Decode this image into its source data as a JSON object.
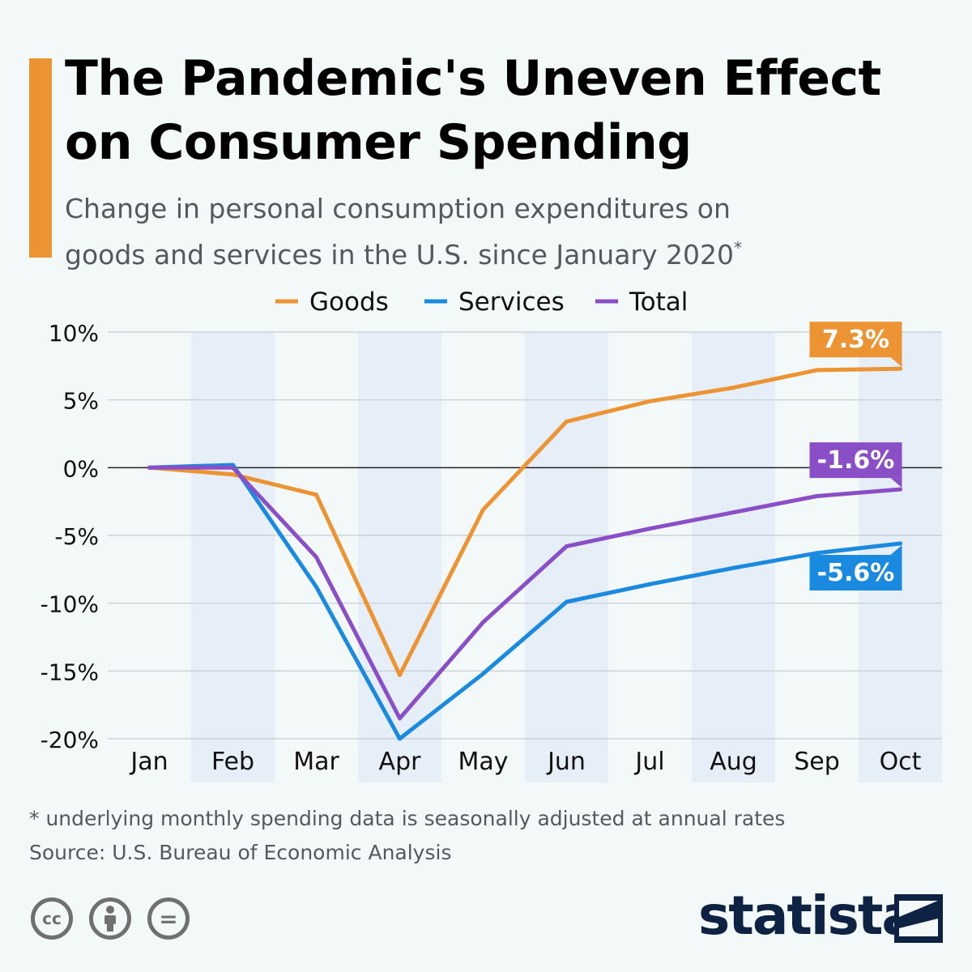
{
  "header": {
    "title_lines": [
      "The Pandemic's Uneven Effect",
      "on Consumer Spending"
    ],
    "subtitle_lines": [
      "Change in personal consumption expenditures on",
      "goods and services in the U.S. since January 2020"
    ],
    "subtitle_mark": "*"
  },
  "chart_data": {
    "type": "line",
    "categories": [
      "Jan",
      "Feb",
      "Mar",
      "Apr",
      "May",
      "Jun",
      "Jul",
      "Aug",
      "Sep",
      "Oct"
    ],
    "ylim": [
      -20,
      10
    ],
    "yticks": [
      10,
      5,
      0,
      -5,
      -10,
      -15,
      -20
    ],
    "ytick_labels": [
      "10%",
      "5%",
      "0%",
      "-5%",
      "-10%",
      "-15%",
      "-20%"
    ],
    "grid": true,
    "legend_position": "top-center",
    "series": [
      {
        "name": "Goods",
        "color": "#ec9433",
        "values": [
          0,
          -0.5,
          -2.0,
          -15.3,
          -3.1,
          3.4,
          4.9,
          5.9,
          7.2,
          7.3
        ],
        "end_label": "7.3%"
      },
      {
        "name": "Services",
        "color": "#1a8ae0",
        "values": [
          0,
          0.2,
          -8.8,
          -20.0,
          -15.2,
          -9.9,
          -8.6,
          -7.4,
          -6.3,
          -5.6
        ],
        "end_label": "-5.6%"
      },
      {
        "name": "Total",
        "color": "#8a4fc7",
        "values": [
          0,
          0.0,
          -6.6,
          -18.5,
          -11.4,
          -5.8,
          -4.5,
          -3.3,
          -2.1,
          -1.6
        ],
        "end_label": "-1.6%"
      }
    ]
  },
  "footer": {
    "note": "* underlying monthly spending data is seasonally adjusted at annual rates",
    "source": "Source: U.S. Bureau of Economic Analysis",
    "license_icons": [
      "cc-icon",
      "attribution-icon",
      "no-derivatives-icon"
    ],
    "license_icon_glyphs": [
      "cc",
      "",
      "="
    ],
    "brand": "statista"
  },
  "colors": {
    "accent": "#ec9433",
    "band": "#e6eef8",
    "background": "#f3f8f8",
    "brand": "#0e2244"
  }
}
